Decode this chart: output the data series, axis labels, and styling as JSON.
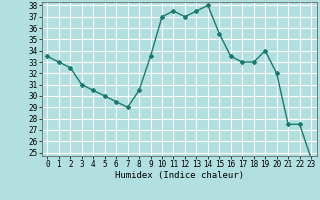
{
  "x": [
    0,
    1,
    2,
    3,
    4,
    5,
    6,
    7,
    8,
    9,
    10,
    11,
    12,
    13,
    14,
    15,
    16,
    17,
    18,
    19,
    20,
    21,
    22,
    23
  ],
  "y": [
    33.5,
    33.0,
    32.5,
    31.0,
    30.5,
    30.0,
    29.5,
    29.0,
    30.5,
    33.5,
    37.0,
    37.5,
    37.0,
    37.5,
    38.0,
    35.5,
    33.5,
    33.0,
    33.0,
    34.0,
    32.0,
    27.5,
    27.5,
    24.5
  ],
  "line_color": "#1a7a6e",
  "marker": "D",
  "markersize": 2,
  "linewidth": 1.0,
  "bg_color": "#b2e0e0",
  "grid_color": "#ffffff",
  "xlabel": "Humidex (Indice chaleur)",
  "ylim_min": 25,
  "ylim_max": 38,
  "xlim_min": -0.5,
  "xlim_max": 23.5,
  "yticks": [
    25,
    26,
    27,
    28,
    29,
    30,
    31,
    32,
    33,
    34,
    35,
    36,
    37,
    38
  ],
  "xticks": [
    0,
    1,
    2,
    3,
    4,
    5,
    6,
    7,
    8,
    9,
    10,
    11,
    12,
    13,
    14,
    15,
    16,
    17,
    18,
    19,
    20,
    21,
    22,
    23
  ],
  "tick_fontsize": 5.5,
  "xlabel_fontsize": 6.5
}
